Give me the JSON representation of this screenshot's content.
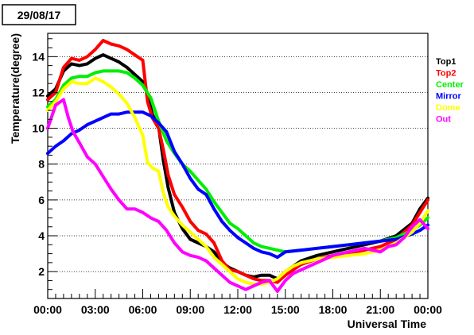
{
  "chart_data": {
    "type": "line",
    "title": "29/08/17",
    "xlabel": "Universal Time",
    "ylabel": "Temperature(degree)",
    "xlim": [
      0,
      24
    ],
    "ylim": [
      0.5,
      15.3
    ],
    "grid": "horizontal",
    "legend_position": "right",
    "x_ticks": [
      {
        "value": 0,
        "label": "00:00"
      },
      {
        "value": 3,
        "label": "03:00"
      },
      {
        "value": 6,
        "label": "06:00"
      },
      {
        "value": 9,
        "label": "09:00"
      },
      {
        "value": 12,
        "label": "12:00"
      },
      {
        "value": 15,
        "label": "15:00"
      },
      {
        "value": 18,
        "label": "18:00"
      },
      {
        "value": 21,
        "label": "21:00"
      },
      {
        "value": 24,
        "label": "00:00"
      }
    ],
    "y_ticks": [
      {
        "value": 2,
        "label": "2"
      },
      {
        "value": 4,
        "label": "4"
      },
      {
        "value": 6,
        "label": "6"
      },
      {
        "value": 8,
        "label": "8"
      },
      {
        "value": 10,
        "label": "10"
      },
      {
        "value": 12,
        "label": "12"
      },
      {
        "value": 14,
        "label": "14"
      }
    ],
    "series": [
      {
        "name": "Top1",
        "color": "#000000",
        "x": [
          0,
          0.5,
          1,
          1.5,
          2,
          2.5,
          3,
          3.5,
          4,
          4.5,
          5,
          5.5,
          6,
          6.3,
          6.6,
          7,
          7.3,
          7.6,
          8,
          8.5,
          9,
          9.5,
          10,
          10.5,
          11,
          11.5,
          12,
          12.5,
          13,
          13.5,
          14,
          14.5,
          15,
          15.5,
          16,
          17,
          18,
          19,
          20,
          21,
          22,
          23,
          23.5,
          24
        ],
        "y": [
          11.8,
          12.2,
          13.2,
          13.6,
          13.5,
          13.6,
          13.9,
          14.1,
          13.9,
          13.7,
          13.4,
          13.0,
          12.6,
          11.9,
          10.8,
          10.1,
          8.2,
          6.7,
          5.3,
          4.4,
          3.8,
          3.6,
          3.4,
          3.1,
          2.5,
          2.2,
          2.0,
          1.8,
          1.7,
          1.8,
          1.8,
          1.6,
          2.0,
          2.3,
          2.6,
          2.9,
          3.1,
          3.3,
          3.5,
          3.7,
          4.0,
          4.7,
          5.5,
          6.1
        ]
      },
      {
        "name": "Top2",
        "color": "#ff0000",
        "x": [
          0,
          0.5,
          1,
          1.5,
          2,
          2.5,
          3,
          3.5,
          4,
          4.5,
          5,
          5.5,
          6,
          6.3,
          6.6,
          7,
          7.3,
          7.6,
          8,
          8.5,
          9,
          9.5,
          10,
          10.5,
          11,
          11.5,
          12,
          12.5,
          13,
          13.5,
          14,
          14.5,
          15,
          15.5,
          16,
          17,
          18,
          19,
          20,
          21,
          22,
          23,
          23.5,
          24
        ],
        "y": [
          11.6,
          12.0,
          13.4,
          13.9,
          13.8,
          14.0,
          14.4,
          14.9,
          14.7,
          14.6,
          14.4,
          14.1,
          13.8,
          11.5,
          10.6,
          10.0,
          8.8,
          7.4,
          6.3,
          5.6,
          4.8,
          4.3,
          4.1,
          3.6,
          2.6,
          2.1,
          2.0,
          1.8,
          1.6,
          1.5,
          1.5,
          1.4,
          1.8,
          2.1,
          2.4,
          2.7,
          2.9,
          3.0,
          3.2,
          3.4,
          3.8,
          4.6,
          5.3,
          6.0
        ]
      },
      {
        "name": "Center",
        "color": "#00ee00",
        "x": [
          0,
          0.5,
          1,
          1.5,
          2,
          2.5,
          3,
          3.5,
          4,
          4.5,
          5,
          5.5,
          6,
          6.5,
          7,
          7.5,
          8,
          8.5,
          9,
          9.5,
          10,
          10.5,
          11,
          11.5,
          12,
          12.5,
          13,
          13.5,
          14,
          14.5,
          15,
          16,
          17,
          18,
          19,
          20,
          21,
          22,
          23,
          23.5,
          24
        ],
        "y": [
          11.2,
          11.6,
          12.4,
          12.8,
          12.9,
          12.9,
          13.1,
          13.2,
          13.2,
          13.2,
          13.1,
          12.8,
          12.4,
          11.7,
          10.4,
          9.3,
          8.6,
          8.0,
          7.6,
          7.1,
          6.6,
          5.9,
          5.3,
          4.7,
          4.4,
          4.0,
          3.6,
          3.4,
          3.3,
          3.2,
          3.1,
          3.2,
          3.3,
          3.4,
          3.5,
          3.6,
          3.7,
          3.9,
          4.3,
          4.6,
          5.0
        ]
      },
      {
        "name": "Mirror",
        "color": "#0000ff",
        "x": [
          0,
          0.5,
          1,
          1.5,
          2,
          2.5,
          3,
          3.5,
          4,
          4.5,
          5,
          5.5,
          6,
          6.5,
          7,
          7.5,
          8,
          8.5,
          9,
          9.5,
          10,
          10.5,
          11,
          11.5,
          12,
          12.5,
          13,
          13.5,
          14,
          14.5,
          15,
          16,
          17,
          18,
          19,
          20,
          21,
          22,
          23,
          23.5,
          24
        ],
        "y": [
          8.6,
          9.0,
          9.3,
          9.7,
          9.9,
          10.2,
          10.4,
          10.6,
          10.8,
          10.8,
          10.9,
          10.9,
          10.9,
          10.7,
          10.3,
          9.8,
          8.7,
          8.0,
          7.2,
          6.6,
          6.3,
          5.5,
          4.8,
          4.3,
          3.9,
          3.6,
          3.3,
          3.1,
          3.0,
          2.8,
          3.1,
          3.2,
          3.3,
          3.4,
          3.5,
          3.6,
          3.7,
          3.8,
          4.1,
          4.3,
          4.6
        ]
      },
      {
        "name": "Dome",
        "color": "#ffff00",
        "x": [
          0,
          0.5,
          1,
          1.5,
          2,
          2.5,
          3,
          3.5,
          4,
          4.5,
          5,
          5.5,
          6,
          6.3,
          6.6,
          7,
          7.3,
          7.6,
          8,
          8.5,
          9,
          9.5,
          10,
          10.5,
          11,
          11.5,
          12,
          12.5,
          13,
          13.5,
          14,
          14.5,
          15,
          15.5,
          16,
          17,
          18,
          19,
          20,
          21,
          22,
          23,
          23.5,
          24
        ],
        "y": [
          11.0,
          11.5,
          12.2,
          12.6,
          12.5,
          12.5,
          12.8,
          12.6,
          12.3,
          11.9,
          11.4,
          10.6,
          9.6,
          8.1,
          7.8,
          7.6,
          6.4,
          5.6,
          5.1,
          4.6,
          4.2,
          3.8,
          3.4,
          2.8,
          2.4,
          2.0,
          1.6,
          1.4,
          1.3,
          1.3,
          1.4,
          1.6,
          2.0,
          2.3,
          2.5,
          2.7,
          2.8,
          2.9,
          3.0,
          3.2,
          3.6,
          4.2,
          4.7,
          5.4
        ]
      },
      {
        "name": "Out",
        "color": "#ff00ff",
        "x": [
          0,
          0.5,
          1,
          1.3,
          1.6,
          2,
          2.5,
          3,
          3.5,
          4,
          4.5,
          5,
          5.5,
          6,
          6.5,
          7,
          7.5,
          8,
          8.5,
          9,
          9.5,
          10,
          10.5,
          11,
          11.5,
          12,
          12.5,
          13,
          13.5,
          14,
          14.5,
          15,
          15.5,
          16,
          16.5,
          17,
          17.5,
          18,
          18.5,
          19,
          19.5,
          20,
          20.5,
          21,
          21.5,
          22,
          22.5,
          23,
          23.5,
          24
        ],
        "y": [
          10.0,
          11.3,
          11.6,
          10.6,
          9.8,
          9.2,
          8.4,
          8.0,
          7.3,
          6.6,
          6.0,
          5.5,
          5.5,
          5.3,
          5.0,
          4.8,
          4.3,
          3.6,
          3.1,
          2.9,
          2.8,
          2.6,
          2.2,
          1.8,
          1.4,
          1.2,
          1.0,
          1.2,
          1.4,
          1.5,
          0.9,
          1.5,
          1.9,
          2.1,
          2.3,
          2.5,
          2.7,
          2.9,
          3.0,
          3.1,
          3.2,
          3.3,
          3.2,
          3.1,
          3.4,
          3.5,
          3.9,
          4.5,
          4.9,
          4.4
        ]
      }
    ]
  }
}
